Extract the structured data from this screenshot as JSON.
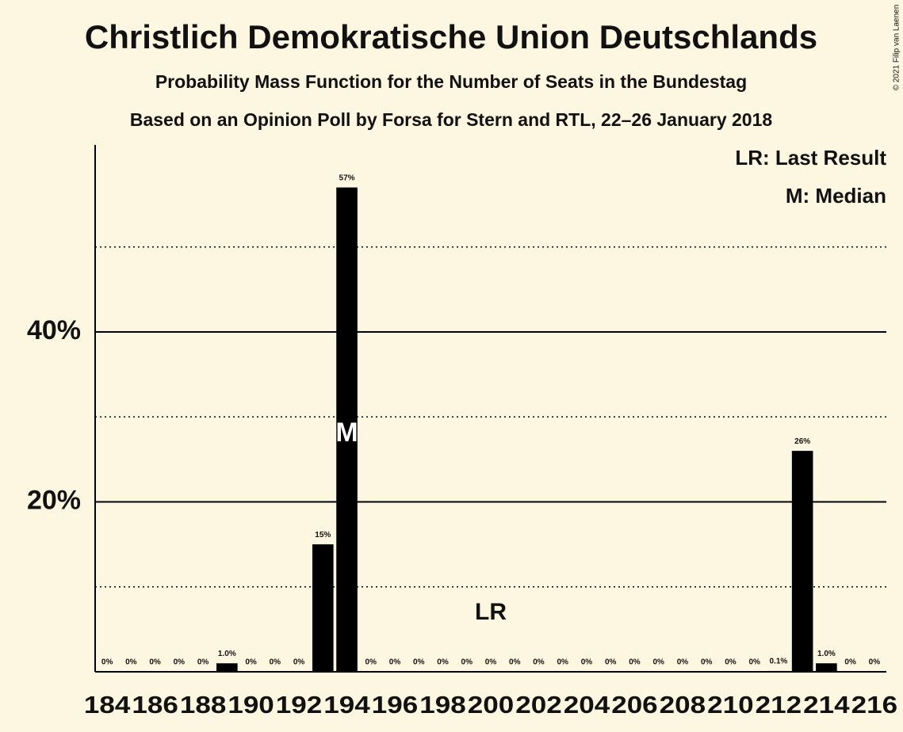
{
  "chart_data": {
    "type": "bar",
    "title": "Christlich Demokratische Union Deutschlands",
    "subtitle": "Probability Mass Function for the Number of Seats in the Bundestag",
    "subtitle2": "Based on an Opinion Poll by Forsa for Stern and RTL, 22–26 January 2018",
    "copyright": "© 2021 Filip van Laenen",
    "legend": [
      "LR: Last Result",
      "M: Median"
    ],
    "legend_corner": "top-right",
    "color": "#000000",
    "categories": [
      "184",
      null,
      "186",
      null,
      "188",
      null,
      "190",
      null,
      "192",
      null,
      "194",
      null,
      "196",
      null,
      "198",
      null,
      "200",
      null,
      "202",
      null,
      "204",
      null,
      "206",
      null,
      "208",
      null,
      "210",
      null,
      "212",
      null,
      "214",
      null,
      "216"
    ],
    "values": [
      0,
      0,
      0,
      0,
      0,
      1.0,
      0,
      0,
      0,
      15,
      57,
      0,
      0,
      0,
      0,
      0,
      0,
      0,
      0,
      0,
      0,
      0,
      0,
      0,
      0,
      0,
      0,
      0,
      0.1,
      26,
      1.0,
      0,
      0
    ],
    "value_labels": [
      "0%",
      "0%",
      "0%",
      "0%",
      "0%",
      "1.0%",
      "0%",
      "0%",
      "0%",
      "15%",
      "57%",
      "0%",
      "0%",
      "0%",
      "0%",
      "0%",
      "0%",
      "0%",
      "0%",
      "0%",
      "0%",
      "0%",
      "0%",
      "0%",
      "0%",
      "0%",
      "0%",
      "0%",
      "0.1%",
      "26%",
      "1.0%",
      "0%",
      "0%"
    ],
    "median": {
      "label": "M",
      "index": 10
    },
    "last_result": {
      "label": "LR",
      "index": 16
    },
    "ylim": [
      0,
      62
    ],
    "yticks": [
      {
        "value": 20,
        "label": "20%"
      },
      {
        "value": 40,
        "label": "40%"
      }
    ],
    "minor_yticks": [
      10,
      30,
      50
    ],
    "grid": true
  }
}
